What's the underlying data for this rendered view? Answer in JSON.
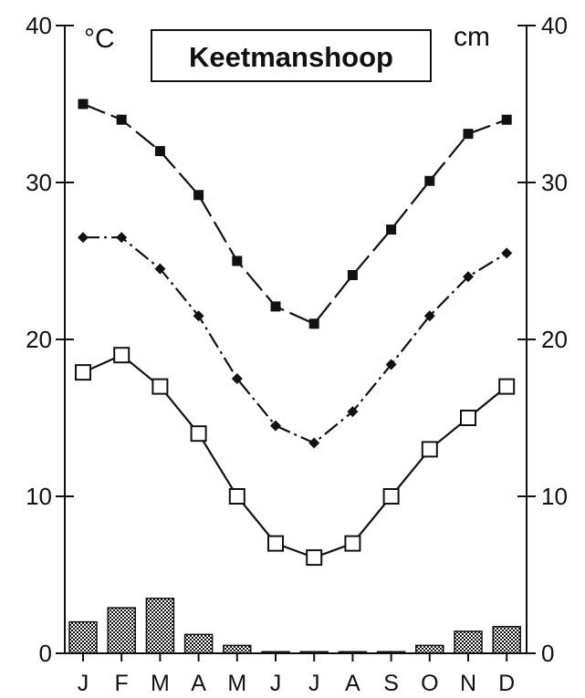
{
  "chart_data": {
    "type": "line",
    "title": "Keetmanshoop",
    "left_unit": "°C",
    "right_unit": "cm",
    "categories": [
      "J",
      "F",
      "M",
      "A",
      "M",
      "J",
      "J",
      "A",
      "S",
      "O",
      "N",
      "D"
    ],
    "ylim": [
      0,
      40
    ],
    "yticks": [
      0,
      10,
      20,
      30,
      40
    ],
    "y2lim": [
      0,
      40
    ],
    "y2ticks": [
      0,
      10,
      20,
      30,
      40
    ],
    "grid": false,
    "series": [
      {
        "key": "max",
        "kind": "line",
        "marker": "filled-square",
        "values": [
          35,
          34,
          32,
          29.2,
          25,
          22.1,
          21,
          24.1,
          27,
          30.1,
          33.1,
          34
        ]
      },
      {
        "key": "mean",
        "kind": "line",
        "marker": "filled-diamond",
        "values": [
          26.5,
          26.5,
          24.5,
          21.5,
          17.5,
          14.5,
          13.4,
          15.4,
          18.4,
          21.5,
          24,
          25.5
        ]
      },
      {
        "key": "min",
        "kind": "line",
        "marker": "open-square",
        "values": [
          17.9,
          19,
          17,
          14,
          10,
          7,
          6.1,
          7,
          10,
          13,
          15,
          17
        ]
      },
      {
        "key": "precipitation",
        "kind": "bar",
        "axis": "right",
        "values": [
          2,
          2.9,
          3.5,
          1.2,
          0.5,
          0.1,
          0.1,
          0.1,
          0.1,
          0.5,
          1.4,
          1.7
        ]
      }
    ]
  }
}
